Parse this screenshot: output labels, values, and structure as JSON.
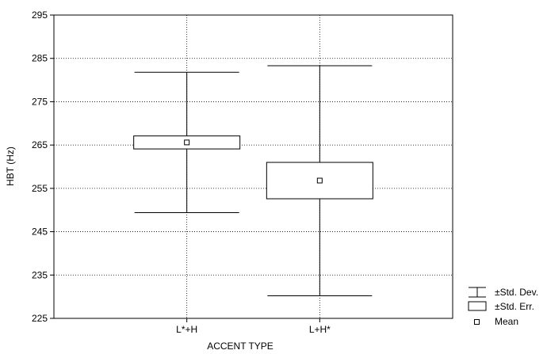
{
  "chart_data": {
    "type": "box",
    "xlabel": "ACCENT TYPE",
    "ylabel": "HBT (Hz)",
    "ylim": [
      225,
      295
    ],
    "yticks": [
      225,
      235,
      245,
      255,
      265,
      275,
      285,
      295
    ],
    "grid": true,
    "legend_position": "bottom-right, outside plot",
    "categories": [
      "L*+H",
      "L+H*"
    ],
    "series": [
      {
        "category": "L*+H",
        "mean": 265.6,
        "se_low": 264.1,
        "se_high": 267.1,
        "sd_low": 249.4,
        "sd_high": 281.8
      },
      {
        "category": "L+H*",
        "mean": 256.8,
        "se_low": 252.6,
        "se_high": 261.0,
        "sd_low": 230.2,
        "sd_high": 283.3
      }
    ],
    "legend": [
      {
        "symbol": "whisker",
        "label": "±Std. Dev."
      },
      {
        "symbol": "box",
        "label": "±Std. Err."
      },
      {
        "symbol": "square",
        "label": "Mean"
      }
    ]
  }
}
